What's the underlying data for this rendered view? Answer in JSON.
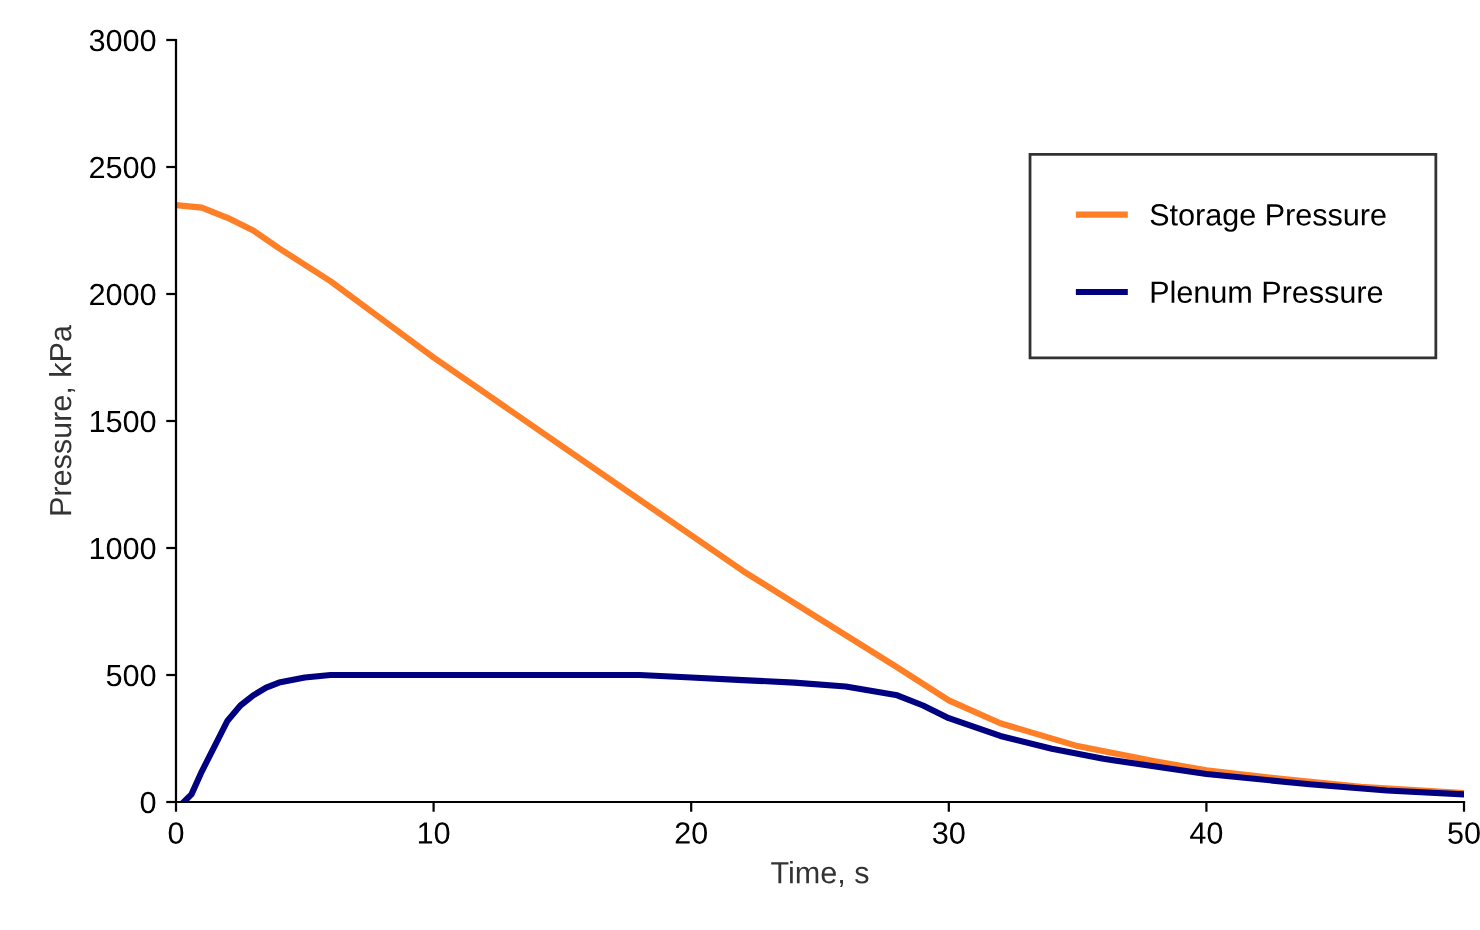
{
  "chart_data": {
    "type": "line",
    "xlabel": "Time, s",
    "ylabel": "Pressure, kPa",
    "xlim": [
      0,
      50
    ],
    "xticks": [
      0,
      10,
      20,
      30,
      40,
      50
    ],
    "ylim": [
      0,
      3000
    ],
    "yticks": [
      0,
      500,
      1000,
      1500,
      2000,
      2500,
      3000
    ],
    "grid": false,
    "legend": "top right",
    "marker": "none",
    "line_style": "solid",
    "series": [
      {
        "name": "Storage Pressure",
        "color": "#ff7f27",
        "x": [
          0,
          1,
          2,
          3,
          4,
          6,
          8,
          10,
          12,
          15,
          18,
          20,
          22,
          25,
          28,
          30,
          32,
          35,
          38,
          40,
          43,
          46,
          50
        ],
        "values": [
          2350,
          2340,
          2300,
          2250,
          2180,
          2050,
          1900,
          1750,
          1610,
          1400,
          1190,
          1050,
          910,
          720,
          530,
          400,
          310,
          220,
          160,
          125,
          90,
          60,
          35
        ]
      },
      {
        "name": "Plenum Pressure",
        "color": "#000080",
        "x": [
          0.3,
          0.6,
          1,
          1.5,
          2,
          2.5,
          3,
          3.5,
          4,
          5,
          6,
          10,
          15,
          18,
          20,
          22,
          24,
          26,
          28,
          29,
          30,
          32,
          34,
          36,
          40,
          44,
          47,
          50
        ],
        "values": [
          0,
          30,
          120,
          220,
          320,
          380,
          420,
          450,
          470,
          490,
          500,
          500,
          500,
          500,
          490,
          480,
          470,
          455,
          420,
          380,
          330,
          260,
          210,
          170,
          110,
          70,
          45,
          30
        ]
      }
    ]
  }
}
